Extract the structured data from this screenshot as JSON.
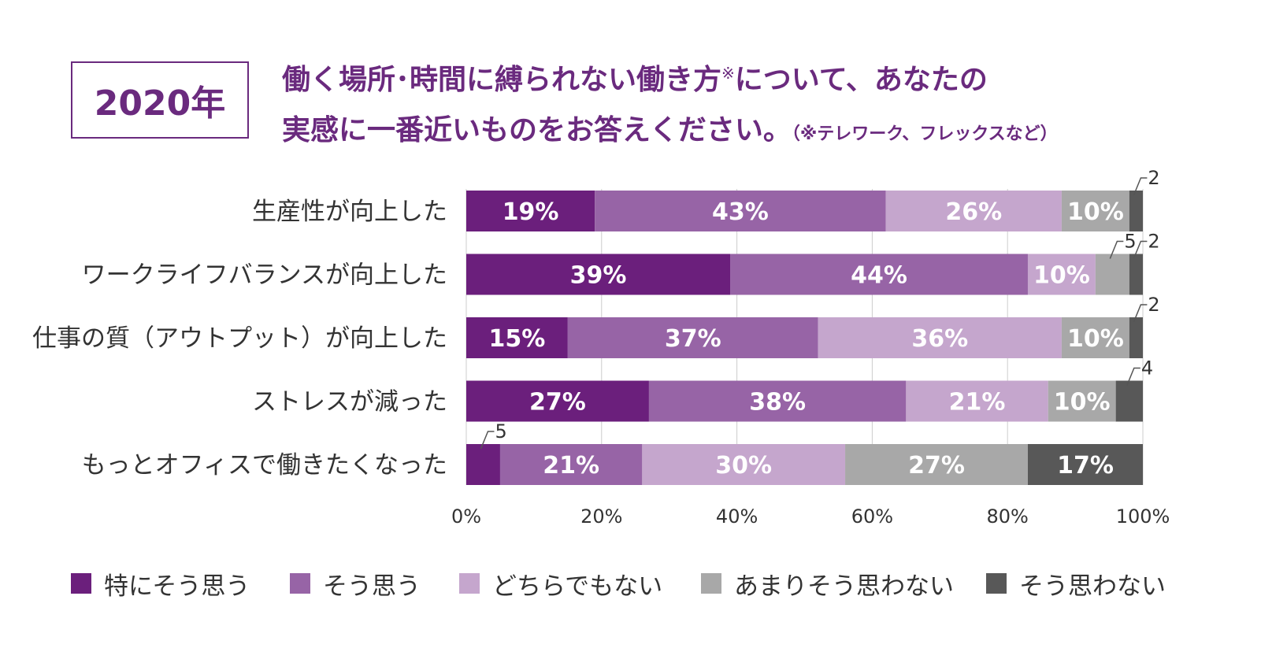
{
  "header": {
    "year": "2020年",
    "question_line1": "働く場所･時間に縛られない働き方",
    "question_mark": "※",
    "question_line1_cont": "について、あなたの",
    "question_line2": "実感に一番近いものをお答えください。",
    "question_note": "（※テレワーク、フレックスなど）"
  },
  "colors": {
    "strongly_agree": "#6b1f7c",
    "agree": "#9764a6",
    "neutral": "#c5a6cd",
    "disagree": "#a8a8a8",
    "strongly_disagree": "#585858",
    "title": "#6a2a7e"
  },
  "chart_data": {
    "type": "bar",
    "orientation": "horizontal",
    "stacked": true,
    "categories": [
      "生産性が向上した",
      "ワークライフバランスが向上した",
      "仕事の質（アウトプット）が向上した",
      "ストレスが減った",
      "もっとオフィスで働きたくなった"
    ],
    "series": [
      {
        "name": "特にそう思う",
        "values": [
          19,
          39,
          15,
          27,
          5
        ]
      },
      {
        "name": "そう思う",
        "values": [
          43,
          44,
          37,
          38,
          21
        ]
      },
      {
        "name": "どちらでもない",
        "values": [
          26,
          10,
          36,
          21,
          30
        ]
      },
      {
        "name": "あまりそう思わない",
        "values": [
          10,
          5,
          10,
          10,
          27
        ]
      },
      {
        "name": "そう思わない",
        "values": [
          2,
          2,
          2,
          4,
          17
        ]
      }
    ],
    "data_labels": [
      [
        "19%",
        "43%",
        "26%",
        "10%",
        "2"
      ],
      [
        "39%",
        "44%",
        "10%",
        "5",
        "2"
      ],
      [
        "15%",
        "37%",
        "36%",
        "10%",
        "2"
      ],
      [
        "27%",
        "38%",
        "21%",
        "10%",
        "4"
      ],
      [
        "5",
        "21%",
        "30%",
        "27%",
        "17%"
      ]
    ],
    "xticks": [
      "0%",
      "20%",
      "40%",
      "60%",
      "80%",
      "100%"
    ],
    "xlim": [
      0,
      100
    ],
    "grid": true,
    "legend_position": "bottom"
  }
}
